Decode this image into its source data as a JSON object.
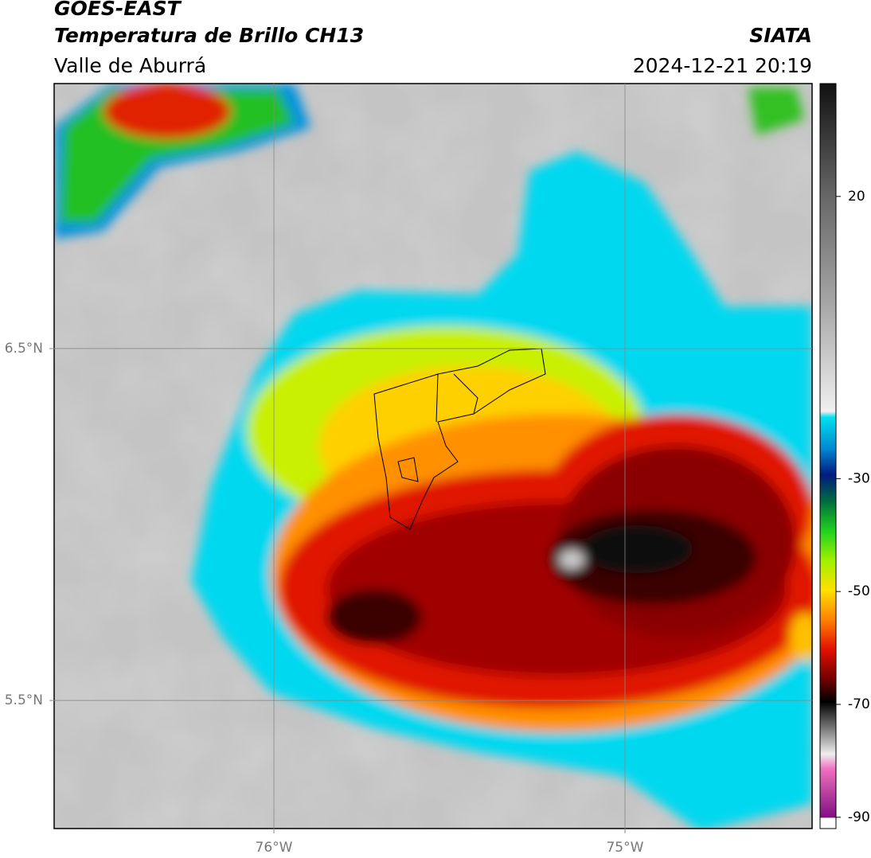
{
  "header": {
    "satellite": "GOES-EAST",
    "product": "Temperatura de Brillo CH13",
    "region": "Valle de Aburrá",
    "agency": "SIATA",
    "timestamp": "2024-12-21 20:19"
  },
  "map": {
    "xlim": [
      -76.626,
      -74.467
    ],
    "ylim": [
      5.136,
      7.253
    ],
    "xticks": [
      {
        "value": -76,
        "label": "76°W"
      },
      {
        "value": -75,
        "label": "75°W"
      }
    ],
    "yticks": [
      {
        "value": 6.5,
        "label": "6.5°N"
      },
      {
        "value": 5.5,
        "label": "5.5°N"
      }
    ],
    "grid": true
  },
  "colorbar": {
    "clim": [
      -92,
      40
    ],
    "ticks": [
      20,
      -30,
      -50,
      -70,
      -90
    ]
  }
}
